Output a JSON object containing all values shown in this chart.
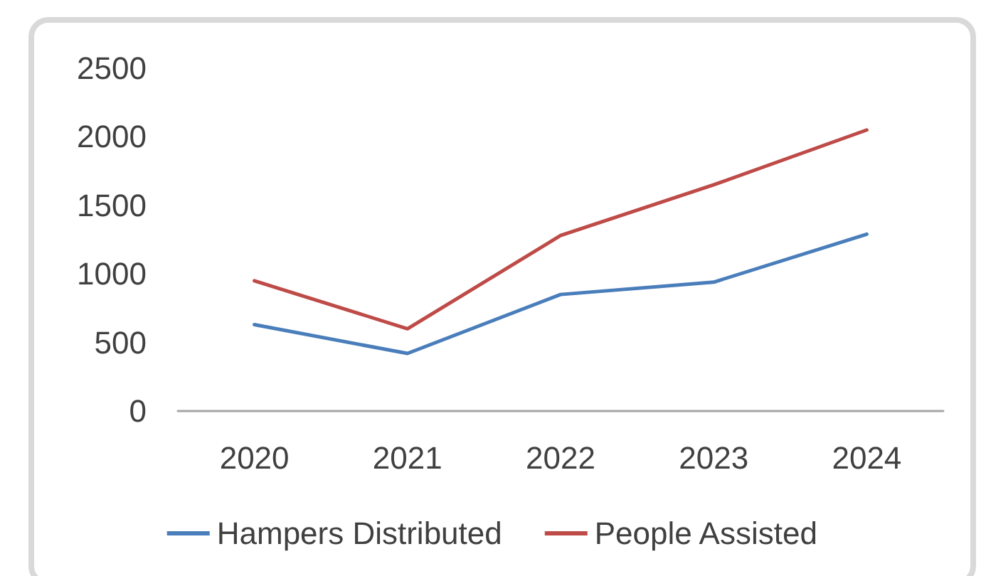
{
  "chart_data": {
    "type": "line",
    "categories": [
      "2020",
      "2021",
      "2022",
      "2023",
      "2024"
    ],
    "series": [
      {
        "name": "Hampers Distributed",
        "color": "#4a7ebb",
        "values": [
          630,
          420,
          850,
          940,
          1290
        ]
      },
      {
        "name": "People Assisted",
        "color": "#be4b48",
        "values": [
          950,
          600,
          1280,
          1650,
          2050
        ]
      }
    ],
    "ylim": [
      0,
      2500
    ],
    "yticks": [
      0,
      500,
      1000,
      1500,
      2000,
      2500
    ],
    "grid": false,
    "legend": "bottom",
    "marker": "none",
    "line_style": "solid"
  }
}
